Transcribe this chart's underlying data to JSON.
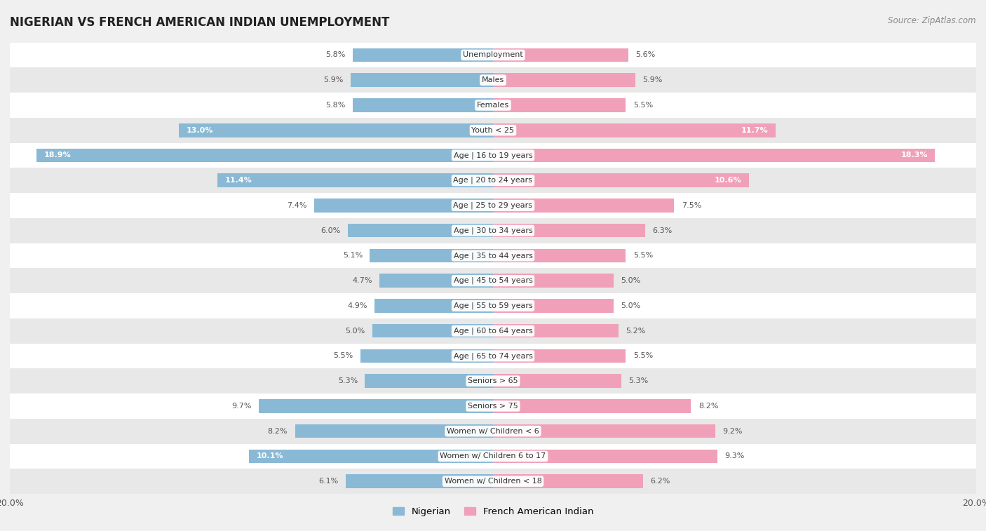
{
  "title": "NIGERIAN VS FRENCH AMERICAN INDIAN UNEMPLOYMENT",
  "source": "Source: ZipAtlas.com",
  "categories": [
    "Unemployment",
    "Males",
    "Females",
    "Youth < 25",
    "Age | 16 to 19 years",
    "Age | 20 to 24 years",
    "Age | 25 to 29 years",
    "Age | 30 to 34 years",
    "Age | 35 to 44 years",
    "Age | 45 to 54 years",
    "Age | 55 to 59 years",
    "Age | 60 to 64 years",
    "Age | 65 to 74 years",
    "Seniors > 65",
    "Seniors > 75",
    "Women w/ Children < 6",
    "Women w/ Children 6 to 17",
    "Women w/ Children < 18"
  ],
  "nigerian": [
    5.8,
    5.9,
    5.8,
    13.0,
    18.9,
    11.4,
    7.4,
    6.0,
    5.1,
    4.7,
    4.9,
    5.0,
    5.5,
    5.3,
    9.7,
    8.2,
    10.1,
    6.1
  ],
  "french_american_indian": [
    5.6,
    5.9,
    5.5,
    11.7,
    18.3,
    10.6,
    7.5,
    6.3,
    5.5,
    5.0,
    5.0,
    5.2,
    5.5,
    5.3,
    8.2,
    9.2,
    9.3,
    6.2
  ],
  "nigerian_color": "#8ab9d5",
  "french_color": "#f0a0b8",
  "background_color": "#f0f0f0",
  "row_color_even": "#ffffff",
  "row_color_odd": "#e8e8e8",
  "xlim": 20.0,
  "legend_nigerian": "Nigerian",
  "legend_french": "French American Indian",
  "value_inside_threshold": 10.0
}
